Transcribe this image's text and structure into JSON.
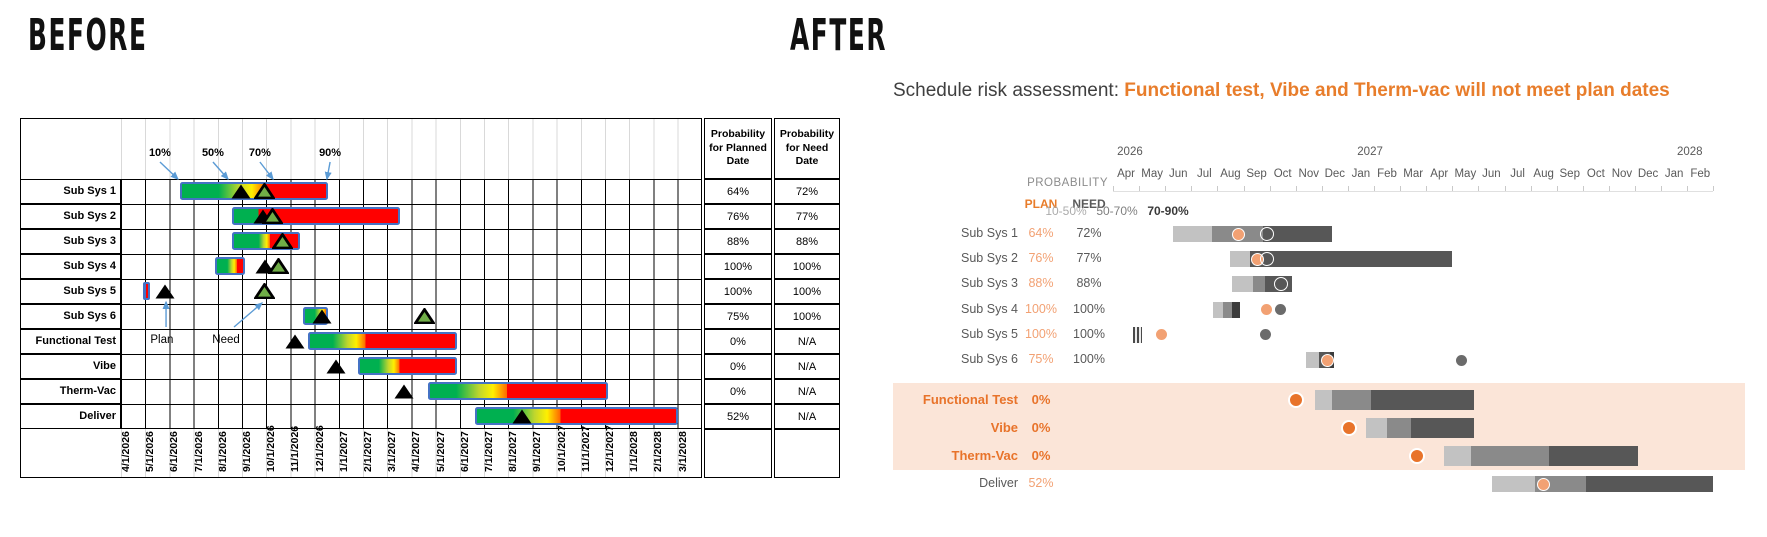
{
  "palette": {
    "excel_green": "#00B050",
    "excel_yellow": "#FFF000",
    "excel_red": "#FF0000",
    "excel_blue": "#4472C4",
    "arrow_blue": "#5B9BD5",
    "gridline_gray": "#D9D9D9",
    "bar_light": "#C2C2C2",
    "bar_mid": "#8A8A8A",
    "bar_dark": "#575757",
    "bar_darkest": "#3B3B3B",
    "orange_deep": "#E8732A",
    "orange_light": "#F2A173",
    "peach_band": "#FBE5D8",
    "need_gray": "#6B6B6B",
    "text_gray": "#595959",
    "title_orange": "#E87D2B",
    "need_triangle_green": "#70AD47"
  },
  "before": {
    "title": "BEFORE",
    "callouts": [
      {
        "label": "10%",
        "label_m": 1.61,
        "target_m": 2.35
      },
      {
        "label": "50%",
        "label_m": 3.8,
        "target_m": 4.42
      },
      {
        "label": "70%",
        "label_m": 5.74,
        "target_m": 6.28
      },
      {
        "label": "90%",
        "label_m": 8.64,
        "target_m": 8.51
      }
    ],
    "plan_note": {
      "label": "Plan",
      "m": 1.69
    },
    "need_note": {
      "label": "Need",
      "m": 4.34
    },
    "rows": [
      {
        "label": "Sub Sys 1",
        "segments": [
          {
            "c": "green",
            "m0": 2.44,
            "m1": 4.0
          },
          {
            "c": "grad",
            "m0": 4.0,
            "m1": 5.95
          },
          {
            "c": "red",
            "m0": 5.95,
            "m1": 8.55
          }
        ],
        "markers": [
          {
            "t": "plan",
            "m": 4.95
          },
          {
            "t": "need",
            "m": 5.95
          }
        ]
      },
      {
        "label": "Sub Sys 2",
        "segments": [
          {
            "c": "green",
            "m0": 4.57,
            "m1": 5.6
          },
          {
            "c": "red",
            "m0": 5.6,
            "m1": 11.53
          }
        ],
        "markers": [
          {
            "t": "plan",
            "m": 5.87
          },
          {
            "t": "need",
            "m": 6.28
          }
        ]
      },
      {
        "label": "Sub Sys 3",
        "segments": [
          {
            "c": "green",
            "m0": 4.57,
            "m1": 5.66
          },
          {
            "c": "grad",
            "m0": 5.66,
            "m1": 6.16
          },
          {
            "c": "red",
            "m0": 6.16,
            "m1": 7.4
          }
        ],
        "markers": [
          {
            "t": "need",
            "m": 6.69
          }
        ]
      },
      {
        "label": "Sub Sys 4",
        "segments": [
          {
            "c": "green",
            "m0": 3.88,
            "m1": 4.37
          },
          {
            "c": "grad",
            "m0": 4.37,
            "m1": 4.83
          },
          {
            "c": "red",
            "m0": 4.83,
            "m1": 5.12
          }
        ],
        "markers": [
          {
            "t": "plan",
            "m": 5.95
          },
          {
            "t": "need",
            "m": 6.5
          }
        ]
      },
      {
        "label": "Sub Sys 5",
        "segments": [
          {
            "c": "blue",
            "m0": 0.91,
            "m1": 1.16
          }
        ],
        "markers": [
          {
            "t": "plan",
            "m": 1.82
          },
          {
            "t": "need",
            "m": 5.95
          }
        ]
      },
      {
        "label": "Sub Sys 6",
        "segments": [
          {
            "c": "green",
            "m0": 7.52,
            "m1": 8.0
          },
          {
            "c": "grad",
            "m0": 8.0,
            "m1": 8.55
          }
        ],
        "markers": [
          {
            "t": "plan",
            "m": 8.3
          },
          {
            "t": "need",
            "m": 12.55
          }
        ]
      },
      {
        "label": "Functional Test",
        "segments": [
          {
            "c": "green",
            "m0": 7.73,
            "m1": 8.7
          },
          {
            "c": "grad",
            "m0": 8.7,
            "m1": 10.08
          },
          {
            "c": "red",
            "m0": 10.08,
            "m1": 13.88
          }
        ],
        "markers": [
          {
            "t": "plan",
            "m": 7.19
          }
        ]
      },
      {
        "label": "Vibe",
        "segments": [
          {
            "c": "green",
            "m0": 9.79,
            "m1": 10.6
          },
          {
            "c": "grad",
            "m0": 10.6,
            "m1": 11.5
          },
          {
            "c": "red",
            "m0": 11.5,
            "m1": 13.88
          }
        ],
        "markers": [
          {
            "t": "plan",
            "m": 8.9
          }
        ]
      },
      {
        "label": "Therm-Vac",
        "segments": [
          {
            "c": "green",
            "m0": 12.69,
            "m1": 13.8
          },
          {
            "c": "grad",
            "m0": 13.8,
            "m1": 15.95
          },
          {
            "c": "red",
            "m0": 15.95,
            "m1": 20.12
          }
        ],
        "markers": [
          {
            "t": "plan",
            "m": 11.69
          }
        ]
      },
      {
        "label": "Deliver",
        "segments": [
          {
            "c": "green",
            "m0": 14.63,
            "m1": 16.16
          },
          {
            "c": "grad",
            "m0": 16.16,
            "m1": 18.14
          },
          {
            "c": "red",
            "m0": 18.14,
            "m1": 23.02
          }
        ],
        "markers": [
          {
            "t": "plan",
            "m": 16.57
          }
        ]
      }
    ],
    "axis_dates": [
      "4/1/2026",
      "5/1/2026",
      "6/1/2026",
      "7/1/2026",
      "8/1/2026",
      "9/1/2026",
      "10/1/2026",
      "11/1/2026",
      "12/1/2026",
      "1/1/2027",
      "2/1/2027",
      "3/1/2027",
      "4/1/2027",
      "5/1/2027",
      "6/1/2027",
      "7/1/2027",
      "8/1/2027",
      "9/1/2027",
      "10/1/2027",
      "11/1/2027",
      "12/1/2027",
      "1/1/2028",
      "2/1/2028",
      "3/1/2028"
    ],
    "prob_table": {
      "planned_header": "Probability for Planned Date",
      "need_header": "Probability for Need Date",
      "values": [
        [
          "64%",
          "72%"
        ],
        [
          "76%",
          "77%"
        ],
        [
          "88%",
          "88%"
        ],
        [
          "100%",
          "100%"
        ],
        [
          "100%",
          "100%"
        ],
        [
          "75%",
          "100%"
        ],
        [
          "0%",
          "N/A"
        ],
        [
          "0%",
          "N/A"
        ],
        [
          "0%",
          "N/A"
        ],
        [
          "52%",
          "N/A"
        ]
      ]
    }
  },
  "after": {
    "title": "AFTER",
    "headline": {
      "prefix": "Schedule risk assessment: ",
      "emphasis": "Functional test, Vibe and Therm-vac will not meet plan dates"
    },
    "columns": {
      "probability": "PROBABILITY",
      "plan": "PLAN",
      "need": "NEED"
    },
    "legend": [
      {
        "label": "10-50%",
        "color": "#ABABAB",
        "strong": false
      },
      {
        "label": "50-70%",
        "color": "#7F7F7F",
        "strong": false
      },
      {
        "label": "70-90%",
        "color": "#3A3A3A",
        "strong": true
      }
    ],
    "years": [
      {
        "label": "2026",
        "m": 0.65
      },
      {
        "label": "2027",
        "m": 9.85
      },
      {
        "label": "2028",
        "m": 22.1
      }
    ],
    "months": [
      "Apr",
      "May",
      "Jun",
      "Jul",
      "Aug",
      "Sep",
      "Oct",
      "Nov",
      "Dec",
      "Jan",
      "Feb",
      "Mar",
      "Apr",
      "May",
      "Jun",
      "Jul",
      "Aug",
      "Sep",
      "Oct",
      "Nov",
      "Dec",
      "Jan",
      "Feb"
    ],
    "rows": [
      {
        "label": "Sub Sys 1",
        "plan": "64%",
        "need": "72%",
        "highlighted": false,
        "bar": [
          {
            "c": "light",
            "m0": 2.3,
            "m1": 3.79
          },
          {
            "c": "mid",
            "m0": 3.79,
            "m1": 5.75
          },
          {
            "c": "dark",
            "m0": 5.75,
            "m1": 8.39
          }
        ],
        "markers": [
          {
            "t": "plan-light",
            "m": 4.79
          },
          {
            "t": "ring",
            "m": 5.9
          }
        ]
      },
      {
        "label": "Sub Sys 2",
        "plan": "76%",
        "need": "77%",
        "highlighted": false,
        "bar": [
          {
            "c": "light",
            "m0": 4.48,
            "m1": 5.25
          },
          {
            "c": "dark",
            "m0": 5.25,
            "m1": 12.99
          }
        ],
        "markers": [
          {
            "t": "plan-light",
            "m": 5.52
          },
          {
            "t": "ring",
            "m": 5.9
          }
        ]
      },
      {
        "label": "Sub Sys 3",
        "plan": "88%",
        "need": "88%",
        "highlighted": false,
        "bar": [
          {
            "c": "light",
            "m0": 4.56,
            "m1": 5.36
          },
          {
            "c": "mid",
            "m0": 5.36,
            "m1": 5.82
          },
          {
            "c": "dark",
            "m0": 5.82,
            "m1": 6.86
          }
        ],
        "markers": [
          {
            "t": "ring",
            "m": 6.44
          }
        ]
      },
      {
        "label": "Sub Sys 4",
        "plan": "100%",
        "need": "100%",
        "highlighted": false,
        "bar": [
          {
            "c": "light",
            "m0": 3.83,
            "m1": 4.21
          },
          {
            "c": "mid",
            "m0": 4.21,
            "m1": 4.56
          },
          {
            "c": "darkest",
            "m0": 4.56,
            "m1": 4.87
          }
        ],
        "markers": [
          {
            "t": "plan-light",
            "m": 5.9
          },
          {
            "t": "gray",
            "m": 6.4
          }
        ]
      },
      {
        "label": "Sub Sys 5",
        "plan": "100%",
        "need": "100%",
        "highlighted": false,
        "bar": [
          {
            "c": "stripes",
            "m0": 0.77,
            "m1": 1.11
          }
        ],
        "markers": [
          {
            "t": "plan-light",
            "m": 1.84
          },
          {
            "t": "gray",
            "m": 5.86
          }
        ]
      },
      {
        "label": "Sub Sys 6",
        "plan": "75%",
        "need": "100%",
        "highlighted": false,
        "bar": [
          {
            "c": "light",
            "m0": 7.39,
            "m1": 7.89
          },
          {
            "c": "dark",
            "m0": 7.89,
            "m1": 8.33
          },
          {
            "c": "darkest",
            "m0": 8.33,
            "m1": 8.47
          }
        ],
        "markers": [
          {
            "t": "plan-light",
            "m": 8.2
          },
          {
            "t": "gray",
            "m": 13.37
          }
        ]
      },
      {
        "label": "Functional Test",
        "plan": "0%",
        "need": "",
        "highlighted": true,
        "bar": [
          {
            "c": "light",
            "m0": 7.74,
            "m1": 8.39
          },
          {
            "c": "mid",
            "m0": 8.39,
            "m1": 9.89
          },
          {
            "c": "dark",
            "m0": 9.89,
            "m1": 13.83
          }
        ],
        "markers": [
          {
            "t": "plan-deep",
            "m": 7.01
          }
        ]
      },
      {
        "label": "Vibe",
        "plan": "0%",
        "need": "",
        "highlighted": true,
        "bar": [
          {
            "c": "light",
            "m0": 9.69,
            "m1": 10.5
          },
          {
            "c": "mid",
            "m0": 10.5,
            "m1": 11.42
          },
          {
            "c": "dark",
            "m0": 11.42,
            "m1": 13.83
          }
        ],
        "markers": [
          {
            "t": "plan-deep",
            "m": 9.04
          }
        ]
      },
      {
        "label": "Therm-Vac",
        "plan": "0%",
        "need": "",
        "highlighted": true,
        "bar": [
          {
            "c": "light",
            "m0": 12.68,
            "m1": 13.72
          },
          {
            "c": "mid",
            "m0": 13.72,
            "m1": 16.7
          },
          {
            "c": "dark",
            "m0": 16.7,
            "m1": 20.11
          }
        ],
        "markers": [
          {
            "t": "plan-deep",
            "m": 11.65
          }
        ]
      },
      {
        "label": "Deliver",
        "plan": "52%",
        "need": "",
        "highlighted": false,
        "bar": [
          {
            "c": "light",
            "m0": 14.52,
            "m1": 16.17
          },
          {
            "c": "mid",
            "m0": 16.17,
            "m1": 18.12
          },
          {
            "c": "dark",
            "m0": 18.12,
            "m1": 22.99
          }
        ],
        "markers": [
          {
            "t": "plan-light",
            "m": 16.48
          }
        ]
      }
    ]
  },
  "chart_data": {
    "type": "bar",
    "subtype": "gantt-schedule-risk-before-after",
    "unit": "months offset from 2026-04-01, 1.0 = one month",
    "x_axis": {
      "start": "4/1/2026",
      "end": "3/1/2028",
      "interval": "month"
    },
    "legend_bands": [
      "10-50%",
      "50-70%",
      "70-90%"
    ],
    "tasks": [
      {
        "name": "Sub Sys 1",
        "prob_planned": "64%",
        "prob_need": "72%",
        "window": [
          2.3,
          8.4
        ],
        "plan_date_m": 4.8,
        "need_date_m": 5.9
      },
      {
        "name": "Sub Sys 2",
        "prob_planned": "76%",
        "prob_need": "77%",
        "window": [
          4.5,
          13.0
        ],
        "plan_date_m": 5.5,
        "need_date_m": 5.9
      },
      {
        "name": "Sub Sys 3",
        "prob_planned": "88%",
        "prob_need": "88%",
        "window": [
          4.6,
          6.9
        ],
        "plan_date_m": 6.4,
        "need_date_m": 6.4
      },
      {
        "name": "Sub Sys 4",
        "prob_planned": "100%",
        "prob_need": "100%",
        "window": [
          3.8,
          4.9
        ],
        "plan_date_m": 5.9,
        "need_date_m": 6.4
      },
      {
        "name": "Sub Sys 5",
        "prob_planned": "100%",
        "prob_need": "100%",
        "window": [
          0.8,
          1.1
        ],
        "plan_date_m": 1.8,
        "need_date_m": 5.9
      },
      {
        "name": "Sub Sys 6",
        "prob_planned": "75%",
        "prob_need": "100%",
        "window": [
          7.4,
          8.5
        ],
        "plan_date_m": 8.2,
        "need_date_m": 13.4
      },
      {
        "name": "Functional Test",
        "prob_planned": "0%",
        "prob_need": "N/A",
        "window": [
          7.7,
          13.9
        ],
        "plan_date_m": 7.0
      },
      {
        "name": "Vibe",
        "prob_planned": "0%",
        "prob_need": "N/A",
        "window": [
          9.7,
          13.9
        ],
        "plan_date_m": 9.0
      },
      {
        "name": "Therm-Vac",
        "prob_planned": "0%",
        "prob_need": "N/A",
        "window": [
          12.7,
          20.1
        ],
        "plan_date_m": 11.7
      },
      {
        "name": "Deliver",
        "prob_planned": "52%",
        "prob_need": "N/A",
        "window": [
          14.5,
          23.0
        ],
        "plan_date_m": 16.5
      }
    ]
  }
}
